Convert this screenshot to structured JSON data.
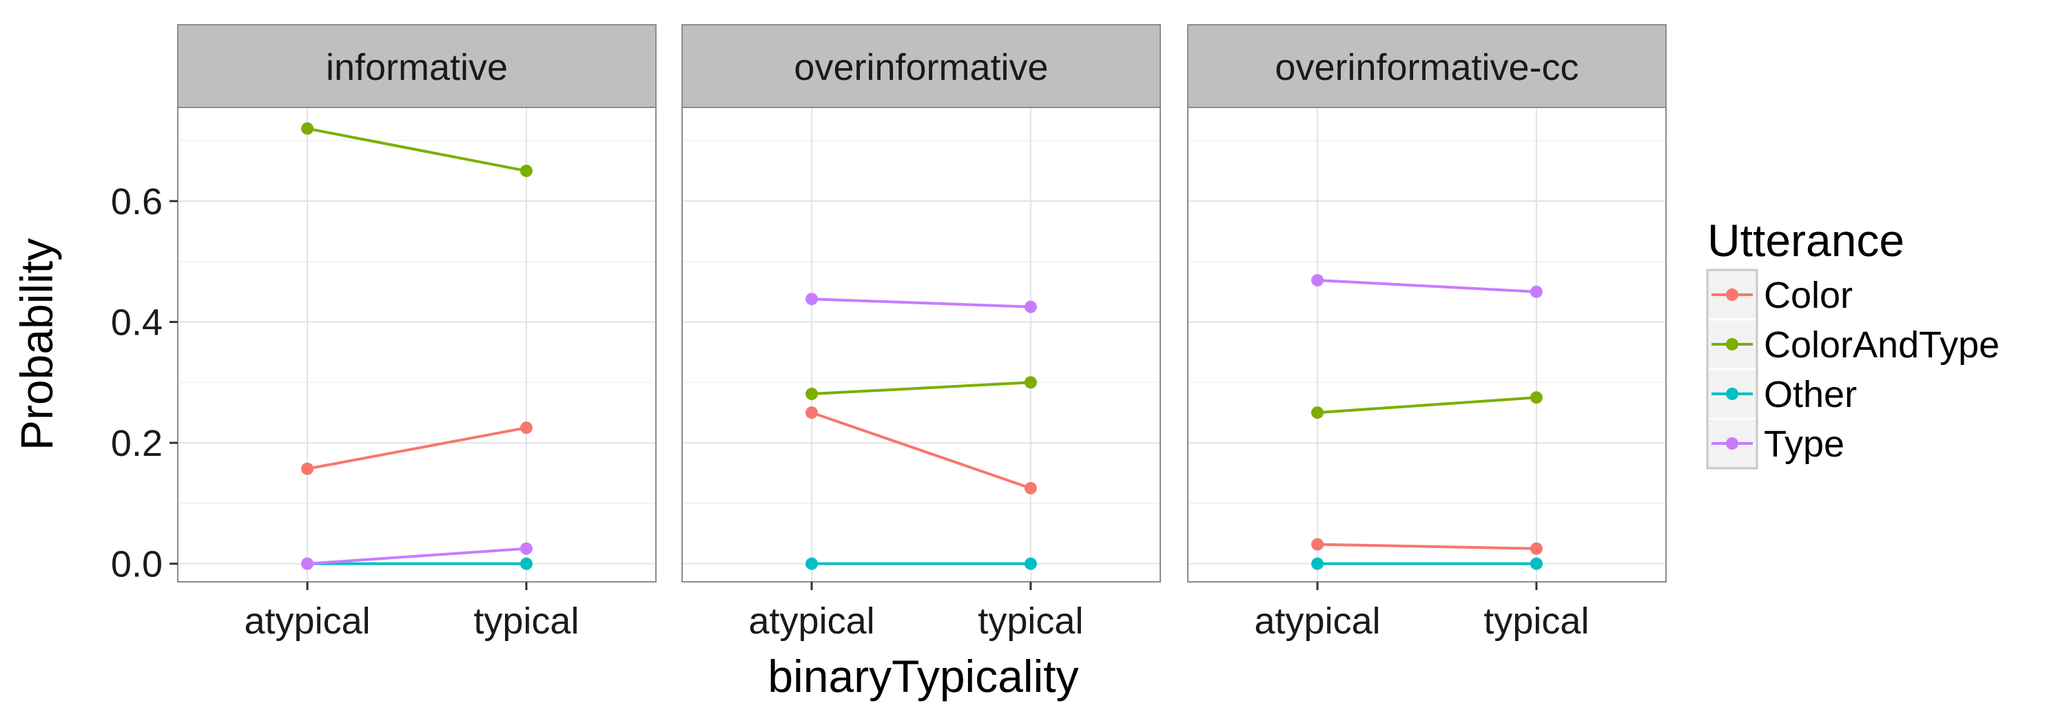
{
  "chart_data": {
    "type": "line",
    "facets": [
      "informative",
      "overinformative",
      "overinformative-cc"
    ],
    "categories": [
      "atypical",
      "typical"
    ],
    "xlabel": "binaryTypicality",
    "ylabel": "Probability",
    "ylim": [
      -0.03,
      0.755
    ],
    "yticks": [
      0.0,
      0.2,
      0.4,
      0.6
    ],
    "ytick_labels": [
      "0.0",
      "0.2",
      "0.4",
      "0.6"
    ],
    "grid": true,
    "legend": {
      "title": "Utterance",
      "placement": "right",
      "entries": [
        "Color",
        "ColorAndType",
        "Other",
        "Type"
      ]
    },
    "series": [
      {
        "name": "Color",
        "color": "#F8766D",
        "values": {
          "informative": [
            0.157,
            0.225
          ],
          "overinformative": [
            0.25,
            0.125
          ],
          "overinformative-cc": [
            0.032,
            0.025
          ]
        }
      },
      {
        "name": "ColorAndType",
        "color": "#7CAE00",
        "values": {
          "informative": [
            0.72,
            0.65
          ],
          "overinformative": [
            0.281,
            0.3
          ],
          "overinformative-cc": [
            0.25,
            0.275
          ]
        }
      },
      {
        "name": "Other",
        "color": "#00BFC4",
        "values": {
          "informative": [
            0.0,
            0.0
          ],
          "overinformative": [
            0.0,
            0.0
          ],
          "overinformative-cc": [
            0.0,
            0.0
          ]
        }
      },
      {
        "name": "Type",
        "color": "#C77CFF",
        "values": {
          "informative": [
            0.0,
            0.025
          ],
          "overinformative": [
            0.438,
            0.425
          ],
          "overinformative-cc": [
            0.469,
            0.45
          ]
        }
      }
    ]
  }
}
